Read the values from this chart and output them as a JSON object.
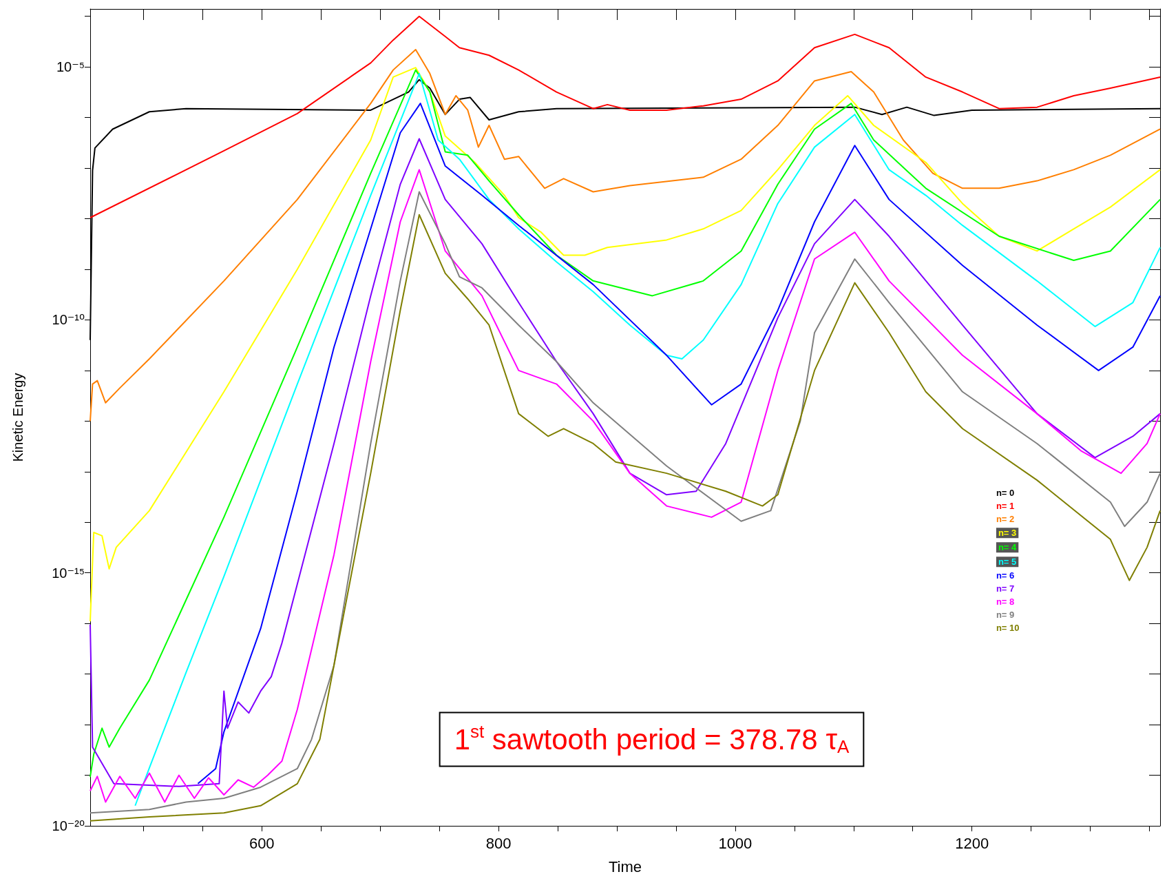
{
  "chart_data": {
    "type": "line",
    "xlabel": "Time",
    "ylabel": "Kinetic Energy",
    "log": "y",
    "grid": false,
    "legend": "right",
    "marker": "none",
    "line_style": "solid",
    "xlim": [
      455,
      1359
    ],
    "xticks": [
      {
        "value": 500,
        "label": null
      },
      {
        "value": 550,
        "label": null
      },
      600,
      {
        "value": 650,
        "label": null
      },
      {
        "value": 700,
        "label": null
      },
      {
        "value": 750,
        "label": null
      },
      800,
      {
        "value": 850,
        "label": null
      },
      {
        "value": 900,
        "label": null
      },
      {
        "value": 950,
        "label": null
      },
      1000,
      {
        "value": 1050,
        "label": null
      },
      {
        "value": 1100,
        "label": null
      },
      {
        "value": 1150,
        "label": null
      },
      1200,
      {
        "value": 1250,
        "label": null
      },
      {
        "value": 1300,
        "label": null
      },
      {
        "value": 1350,
        "label": null
      }
    ],
    "ylim": [
      1e-20,
      0.00014
    ],
    "yticks": [
      {
        "value": 1e-20,
        "label": "10⁻²⁰"
      },
      {
        "value": 1e-19,
        "label": null
      },
      {
        "value": 1e-18,
        "label": null
      },
      {
        "value": 1e-17,
        "label": null
      },
      {
        "value": 1e-16,
        "label": null
      },
      {
        "value": 1e-15,
        "label": "10⁻¹⁵"
      },
      {
        "value": 1e-14,
        "label": null
      },
      {
        "value": 1e-13,
        "label": null
      },
      {
        "value": 1e-12,
        "label": null
      },
      {
        "value": 1e-11,
        "label": null
      },
      {
        "value": 1e-10,
        "label": "10⁻¹⁰"
      },
      {
        "value": 1e-09,
        "label": null
      },
      {
        "value": 1e-08,
        "label": null
      },
      {
        "value": 1e-07,
        "label": null
      },
      {
        "value": 1e-06,
        "label": null
      },
      {
        "value": 1e-05,
        "label": "10⁻⁵"
      },
      {
        "value": 0.0001,
        "label": null
      }
    ],
    "annotations": [
      "1$^{st}$ sawtooth period = 378.78 τ$_{A}$"
    ],
    "series": [
      {
        "name": "n= 0",
        "color": "#000000",
        "x": [
          455,
          457,
          459,
          474,
          505,
          536,
          692,
          724,
          733,
          742,
          755,
          767,
          776,
          792,
          817,
          849,
          1101,
          1124,
          1145,
          1168,
          1200,
          1359
        ],
        "values": [
          4e-11,
          9e-08,
          2.5e-07,
          5.9e-07,
          1.3e-06,
          1.5e-06,
          1.4e-06,
          3.2e-06,
          5.6e-06,
          3.8e-06,
          1.15e-06,
          2.3e-06,
          2.5e-06,
          9e-07,
          1.3e-06,
          1.5e-06,
          1.6e-06,
          1.15e-06,
          1.6e-06,
          1.1e-06,
          1.4e-06,
          1.5e-06
        ]
      },
      {
        "name": "n= 1",
        "color": "#ff0000",
        "x": [
          455,
          568,
          630,
          692,
          711,
          733,
          755,
          767,
          792,
          817,
          849,
          880,
          892,
          911,
          942,
          973,
          1005,
          1036,
          1067,
          1101,
          1130,
          1161,
          1192,
          1223,
          1255,
          1286,
          1317,
          1359
        ],
        "values": [
          1.05e-08,
          2.2e-07,
          1.2e-06,
          1.2e-05,
          3.4e-05,
          0.0001,
          4e-05,
          2.4e-05,
          1.7e-05,
          8.7e-06,
          3.2e-06,
          1.5e-06,
          1.8e-06,
          1.4e-06,
          1.4e-06,
          1.7e-06,
          2.3e-06,
          5.3e-06,
          2.4e-05,
          4.4e-05,
          2.4e-05,
          6.3e-06,
          3.2e-06,
          1.5e-06,
          1.6e-06,
          2.7e-06,
          3.8e-06,
          6.3e-06
        ]
      },
      {
        "name": "n= 2",
        "color": "#ff7f00",
        "x": [
          455,
          457,
          461,
          468,
          480,
          505,
          568,
          630,
          692,
          711,
          730,
          742,
          755,
          764,
          774,
          783,
          792,
          805,
          817,
          839,
          855,
          880,
          911,
          973,
          1005,
          1036,
          1067,
          1098,
          1117,
          1142,
          1167,
          1192,
          1223,
          1255,
          1286,
          1317,
          1359
        ],
        "values": [
          1e-12,
          5.4e-12,
          6.3e-12,
          2.3e-12,
          4.5e-12,
          1.7e-11,
          5.9e-10,
          2.4e-08,
          1.9e-06,
          8.7e-06,
          2.2e-05,
          7.4e-06,
          1.15e-06,
          2.7e-06,
          1.4e-06,
          2.6e-07,
          7e-07,
          1.5e-07,
          1.7e-07,
          4e-08,
          6.2e-08,
          3.4e-08,
          4.5e-08,
          6.6e-08,
          1.5e-07,
          7e-07,
          5.3e-06,
          8.1e-06,
          3.2e-06,
          3.6e-07,
          7.9e-08,
          4e-08,
          4e-08,
          5.6e-08,
          9.3e-08,
          1.8e-07,
          5.9e-07
        ]
      },
      {
        "name": "n= 3",
        "color": "#ffff00",
        "x": [
          455,
          458,
          465,
          471,
          477,
          505,
          568,
          630,
          692,
          711,
          730,
          742,
          755,
          780,
          805,
          817,
          836,
          855,
          873,
          892,
          942,
          973,
          1005,
          1036,
          1067,
          1095,
          1117,
          1161,
          1192,
          1223,
          1255,
          1286,
          1317,
          1359
        ],
        "values": [
          1.1e-16,
          6.3e-15,
          5.4e-15,
          1.2e-15,
          3.2e-15,
          1.7e-14,
          3.8e-12,
          1e-09,
          3.6e-07,
          6.3e-06,
          9.7e-06,
          3.2e-06,
          4.3e-07,
          1.3e-07,
          2.9e-08,
          1.05e-08,
          5.4e-09,
          1.9e-09,
          1.9e-09,
          2.7e-09,
          3.8e-09,
          6.3e-09,
          1.45e-08,
          9.3e-08,
          7e-07,
          2.7e-06,
          7e-07,
          1.3e-07,
          2e-08,
          4.5e-09,
          2.3e-09,
          6.3e-09,
          1.7e-08,
          9.3e-08
        ]
      },
      {
        "name": "n= 4",
        "color": "#00ff00",
        "x": [
          455,
          458,
          465,
          471,
          480,
          505,
          568,
          630,
          692,
          730,
          742,
          755,
          774,
          792,
          817,
          849,
          880,
          930,
          973,
          1005,
          1036,
          1067,
          1098,
          1117,
          1161,
          1223,
          1286,
          1317,
          1359
        ],
        "values": [
          9.3e-20,
          2.6e-19,
          8.5e-19,
          3.6e-19,
          8.5e-19,
          7.6e-18,
          1.26e-14,
          2.9e-11,
          7.9e-08,
          8.7e-06,
          3.2e-06,
          2.1e-07,
          1.8e-07,
          5.6e-08,
          1.2e-08,
          1.9e-09,
          5.9e-10,
          3e-10,
          5.9e-10,
          2.3e-09,
          4.8e-08,
          5.9e-07,
          1.9e-06,
          3.6e-07,
          4e-08,
          4.5e-09,
          1.5e-09,
          2.3e-09,
          2.4e-08
        ]
      },
      {
        "name": "n= 5",
        "color": "#00ffff",
        "x": [
          493,
          505,
          536,
          568,
          630,
          692,
          733,
          749,
          767,
          792,
          817,
          849,
          880,
          911,
          942,
          955,
          973,
          1005,
          1036,
          1067,
          1101,
          1130,
          1161,
          1192,
          1255,
          1304,
          1336,
          1359
        ],
        "values": [
          2.5e-20,
          1.4e-19,
          1.07e-17,
          8.5e-16,
          5.4e-12,
          2.9e-08,
          7.4e-06,
          3.6e-07,
          1.5e-07,
          2.4e-08,
          6.3e-09,
          1.4e-09,
          3.6e-10,
          7.9e-11,
          2e-11,
          1.7e-11,
          4e-11,
          5e-10,
          2e-08,
          2.6e-07,
          1.15e-06,
          9.3e-08,
          2.9e-08,
          7.4e-09,
          5.9e-10,
          7.4e-11,
          2.2e-10,
          2.7e-09
        ]
      },
      {
        "name": "n= 6",
        "color": "#0000ff",
        "x": [
          546,
          561,
          568,
          599,
          630,
          661,
          692,
          717,
          734,
          755,
          786,
          817,
          880,
          942,
          980,
          1005,
          1036,
          1067,
          1101,
          1130,
          1192,
          1255,
          1307,
          1336,
          1359
        ],
        "values": [
          6.8e-20,
          1.35e-19,
          7.2e-19,
          7.9e-17,
          4.1e-14,
          2.9e-11,
          6.3e-09,
          5e-07,
          1.9e-06,
          1.1e-07,
          2.9e-08,
          7.4e-09,
          5e-10,
          2e-11,
          2.1e-12,
          5.4e-12,
          1.55e-10,
          8.7e-09,
          2.8e-07,
          2.4e-08,
          1.2e-09,
          7.9e-11,
          1e-11,
          2.9e-11,
          3e-10
        ]
      },
      {
        "name": "n= 7",
        "color": "#7f00ff",
        "x": [
          455,
          457,
          475,
          530,
          564,
          568,
          571,
          580,
          589,
          599,
          608,
          617,
          630,
          661,
          692,
          717,
          733,
          755,
          786,
          817,
          849,
          880,
          911,
          942,
          967,
          992,
          1036,
          1067,
          1101,
          1130,
          1192,
          1255,
          1304,
          1336,
          1359
        ],
        "values": [
          9.5e-17,
          3.6e-19,
          6.8e-20,
          6e-20,
          6.8e-20,
          4.6e-18,
          8.5e-19,
          2.8e-18,
          1.7e-18,
          4.6e-18,
          8.9e-18,
          4.1e-17,
          6e-16,
          3.6e-13,
          3e-10,
          4.8e-08,
          3.8e-07,
          2.4e-08,
          3.2e-09,
          2.2e-10,
          1.5e-11,
          1.4e-12,
          9.3e-14,
          3.5e-14,
          4.1e-14,
          3.6e-13,
          1.1e-10,
          3.2e-09,
          2.4e-08,
          4.5e-09,
          7.9e-11,
          1.4e-12,
          1.9e-13,
          5e-13,
          1.4e-12
        ]
      },
      {
        "name": "n= 8",
        "color": "#ff00ff",
        "x": [
          455,
          461,
          468,
          480,
          493,
          505,
          518,
          530,
          543,
          555,
          568,
          580,
          593,
          605,
          617,
          630,
          661,
          692,
          717,
          733,
          755,
          786,
          817,
          849,
          880,
          911,
          942,
          980,
          1005,
          1036,
          1067,
          1101,
          1130,
          1192,
          1255,
          1292,
          1326,
          1348,
          1359
        ],
        "values": [
          4.9e-20,
          9.5e-20,
          2.95e-20,
          9.5e-20,
          3.5e-20,
          1.1e-19,
          2.95e-20,
          1e-19,
          3.5e-20,
          8.9e-20,
          4.1e-20,
          8.1e-20,
          5.8e-20,
          1e-19,
          1.9e-19,
          2e-18,
          2.3e-15,
          1.5e-11,
          8.7e-09,
          9.3e-08,
          2.3e-09,
          3e-10,
          1e-11,
          5.4e-12,
          1e-12,
          9.3e-14,
          2.1e-14,
          1.26e-14,
          2.5e-14,
          1e-11,
          1.6e-09,
          5.4e-09,
          5.9e-10,
          2e-11,
          1.4e-12,
          2.6e-13,
          9.3e-14,
          3.6e-13,
          1.4e-12
        ]
      },
      {
        "name": "n= 9",
        "color": "#7f7f7f",
        "x": [
          455,
          505,
          536,
          568,
          599,
          630,
          642,
          661,
          692,
          717,
          733,
          755,
          767,
          786,
          817,
          849,
          880,
          942,
          1005,
          1030,
          1055,
          1067,
          1101,
          1130,
          1192,
          1255,
          1317,
          1329,
          1348,
          1359
        ],
        "values": [
          1.8e-20,
          2.1e-20,
          2.95e-20,
          3.5e-20,
          5.8e-20,
          1.35e-19,
          5.1e-19,
          1.5e-17,
          3.6e-13,
          5.9e-10,
          3.4e-08,
          3.2e-09,
          7.1e-10,
          4.3e-10,
          7.9e-11,
          1.5e-11,
          2.3e-12,
          1.3e-13,
          1.05e-14,
          1.7e-14,
          1e-12,
          5.6e-11,
          1.6e-09,
          2.2e-10,
          3.8e-12,
          3.6e-13,
          2.5e-14,
          8.3e-15,
          2.5e-14,
          9.3e-14
        ]
      },
      {
        "name": "n= 10",
        "color": "#7f7f00",
        "x": [
          455,
          505,
          568,
          599,
          630,
          649,
          661,
          692,
          717,
          733,
          755,
          774,
          792,
          817,
          842,
          855,
          880,
          899,
          942,
          992,
          1023,
          1036,
          1067,
          1101,
          1130,
          1161,
          1192,
          1255,
          1317,
          1333,
          1348,
          1359
        ],
        "values": [
          1.26e-20,
          1.5e-20,
          1.8e-20,
          2.5e-20,
          6.8e-20,
          5.1e-19,
          1.5e-17,
          9.3e-14,
          1.55e-10,
          1.2e-08,
          8.3e-10,
          2.6e-10,
          7.9e-11,
          1.4e-12,
          5e-13,
          7.1e-13,
          3.6e-13,
          1.55e-13,
          9.3e-14,
          4.1e-14,
          2.1e-14,
          3.5e-14,
          1e-11,
          5.4e-10,
          5.6e-11,
          3.8e-12,
          7.1e-13,
          6.8e-14,
          4.6e-15,
          7.1e-16,
          3.2e-15,
          1.7e-14
        ]
      }
    ]
  }
}
